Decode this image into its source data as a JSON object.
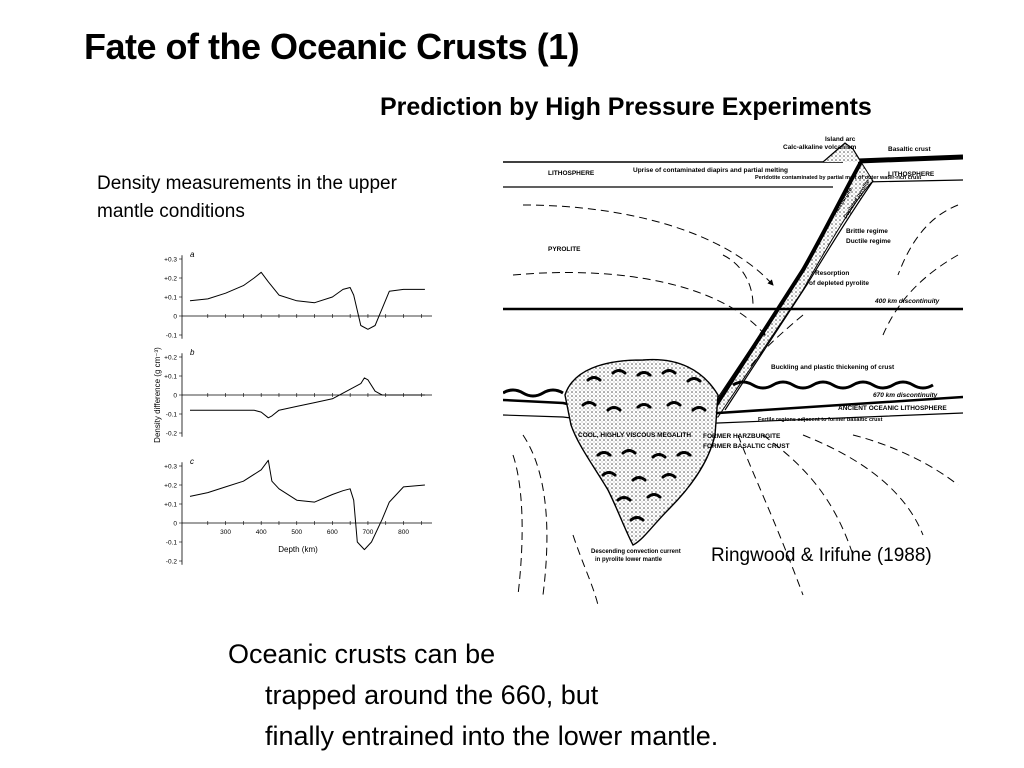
{
  "slide": {
    "title": "Fate of the Oceanic Crusts (1)",
    "subtitle": "Prediction by High Pressure Experiments",
    "density_caption": "Density measurements in the upper mantle conditions",
    "citation": "Ringwood & Irifune (1988)",
    "conclusion": [
      "Oceanic crusts can be",
      "trapped around the 660, but",
      "finally entrained into the lower mantle."
    ]
  },
  "chart_data": {
    "type": "line",
    "ylabel": "Density difference (g cm⁻³)",
    "xlabel": "Depth (km)",
    "xticks": [
      "300",
      "400",
      "500",
      "600",
      "700",
      "800"
    ],
    "panels": [
      {
        "label": "a",
        "yticks": [
          "+0.3",
          "+0.2",
          "+0.1",
          "0",
          "-0.1"
        ],
        "x": [
          200,
          250,
          300,
          350,
          380,
          400,
          420,
          450,
          500,
          550,
          600,
          630,
          650,
          660,
          680,
          700,
          720,
          740,
          760,
          800,
          840,
          860
        ],
        "y": [
          0.08,
          0.09,
          0.12,
          0.16,
          0.2,
          0.23,
          0.18,
          0.11,
          0.08,
          0.07,
          0.1,
          0.14,
          0.15,
          0.11,
          -0.05,
          -0.07,
          -0.05,
          0.04,
          0.13,
          0.14,
          0.14,
          0.14
        ]
      },
      {
        "label": "b",
        "yticks": [
          "+0.2",
          "+0.1",
          "0",
          "-0.1",
          "-0.2"
        ],
        "x": [
          200,
          300,
          380,
          400,
          420,
          430,
          450,
          500,
          550,
          600,
          650,
          680,
          690,
          700,
          720,
          740,
          760,
          800,
          860
        ],
        "y": [
          -0.08,
          -0.08,
          -0.08,
          -0.09,
          -0.12,
          -0.11,
          -0.08,
          -0.06,
          -0.04,
          -0.02,
          0.03,
          0.06,
          0.09,
          0.08,
          0.02,
          0.0,
          0.0,
          0.0,
          0.0
        ]
      },
      {
        "label": "c",
        "yticks": [
          "+0.3",
          "+0.2",
          "+0.1",
          "0",
          "-0.1",
          "-0.2"
        ],
        "x": [
          200,
          250,
          300,
          350,
          400,
          420,
          430,
          450,
          500,
          550,
          600,
          630,
          650,
          660,
          670,
          690,
          710,
          740,
          760,
          800,
          860
        ],
        "y": [
          0.14,
          0.16,
          0.19,
          0.22,
          0.28,
          0.33,
          0.22,
          0.18,
          0.12,
          0.11,
          0.15,
          0.17,
          0.18,
          0.12,
          -0.1,
          -0.14,
          -0.1,
          0.02,
          0.11,
          0.19,
          0.2
        ]
      }
    ]
  },
  "figure": {
    "labels": {
      "island_arc": "Island arc",
      "calc_alkaline": "Calc-alkaline volcanism",
      "basaltic_crust": "Basaltic crust",
      "lithosphere_left": "LITHOSPHERE",
      "lithosphere_right": "LITHOSPHERE",
      "uprise": "Uprise of contaminated diapirs and partial melting",
      "peridotite": "Peridotite contaminated by partial melt of outer water-rich crust",
      "harzburgite": "Harzburgite",
      "depleted_pyrolite": "Depleted pyrolite",
      "brittle": "Brittle regime",
      "ductile": "Ductile regime",
      "pyrolite": "PYROLITE",
      "resorption": "Resorption",
      "resorption2": "of depleted pyrolite",
      "d400": "400 km discontinuity",
      "buckling": "Buckling and plastic thickening of crust",
      "d670": "670 km discontinuity",
      "ancient": "ANCIENT OCEANIC LITHOSPHERE",
      "fertile": "Fertile regions adjacent to former basaltic crust",
      "megalith": "COOL, HIGHLY VISCOUS MEGALITH",
      "former_harz": "FORMER HARZBURGITE",
      "former_basalt": "FORMER BASALTIC CRUST",
      "descending": "Descending convection current",
      "descending2": "in pyrolite lower mantle"
    }
  },
  "colors": {
    "text": "#000000",
    "background": "#ffffff"
  }
}
